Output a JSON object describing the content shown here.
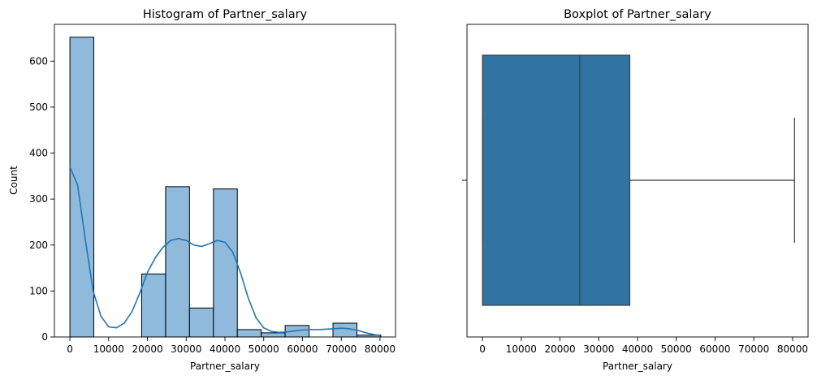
{
  "chart_data": [
    {
      "type": "bar",
      "title": "Histogram of Partner_salary",
      "xlabel": "Partner_salary",
      "ylabel": "Count",
      "xlim": [
        -4000,
        84000
      ],
      "ylim": [
        0,
        680
      ],
      "xticks": [
        0,
        10000,
        20000,
        30000,
        40000,
        50000,
        60000,
        70000,
        80000
      ],
      "yticks": [
        0,
        100,
        200,
        300,
        400,
        500,
        600
      ],
      "bar_color": "#8fbadc",
      "kde_color": "#1f77b4",
      "bins": [
        {
          "start": 0,
          "end": 6170,
          "count": 652
        },
        {
          "start": 6170,
          "end": 12340,
          "count": 0
        },
        {
          "start": 12340,
          "end": 18510,
          "count": 0
        },
        {
          "start": 18510,
          "end": 24680,
          "count": 137
        },
        {
          "start": 24680,
          "end": 30850,
          "count": 327
        },
        {
          "start": 30850,
          "end": 37020,
          "count": 63
        },
        {
          "start": 37020,
          "end": 43190,
          "count": 322
        },
        {
          "start": 43190,
          "end": 49360,
          "count": 16
        },
        {
          "start": 49360,
          "end": 55530,
          "count": 9
        },
        {
          "start": 55530,
          "end": 61700,
          "count": 25
        },
        {
          "start": 61700,
          "end": 67870,
          "count": 0
        },
        {
          "start": 67870,
          "end": 74040,
          "count": 30
        },
        {
          "start": 74040,
          "end": 80210,
          "count": 4
        }
      ],
      "kde": {
        "x": [
          0,
          2000,
          4000,
          6000,
          8000,
          10000,
          12000,
          14000,
          16000,
          18000,
          20000,
          22000,
          24000,
          26000,
          28000,
          30000,
          32000,
          34000,
          36000,
          38000,
          40000,
          42000,
          44000,
          46000,
          48000,
          50000,
          52000,
          54000,
          56000,
          58000,
          60000,
          62000,
          64000,
          66000,
          68000,
          70000,
          72000,
          74000,
          76000,
          78000,
          80000
        ],
        "y": [
          370,
          330,
          210,
          100,
          45,
          22,
          20,
          30,
          55,
          95,
          140,
          172,
          195,
          210,
          214,
          210,
          200,
          197,
          203,
          210,
          206,
          185,
          140,
          85,
          42,
          20,
          12,
          10,
          11,
          13,
          15,
          16,
          16,
          17,
          18,
          19,
          18,
          15,
          10,
          6,
          3
        ]
      }
    },
    {
      "type": "box",
      "title": "Boxplot of Partner_salary",
      "xlabel": "Partner_salary",
      "xlim": [
        -4000,
        84000
      ],
      "xticks": [
        0,
        10000,
        20000,
        30000,
        40000,
        50000,
        60000,
        70000,
        80000
      ],
      "box_color": "#3274a1",
      "whisker_color": "#3d3d3d",
      "stats": {
        "whisker_low": 0,
        "q1": 0,
        "median": 25100,
        "q3": 38000,
        "whisker_high": 80500
      }
    }
  ]
}
